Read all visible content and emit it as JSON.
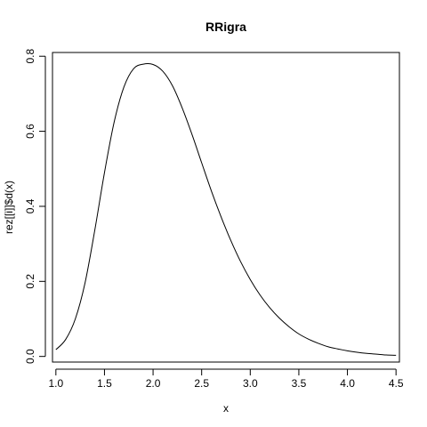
{
  "chart_data": {
    "type": "line",
    "title": "RRigra",
    "xlabel": "x",
    "ylabel": "rez[[i]]$d(x)",
    "xlim": [
      0.965,
      4.535
    ],
    "ylim": [
      -0.015,
      0.81
    ],
    "xticks": [
      1.0,
      1.5,
      2.0,
      2.5,
      3.0,
      3.5,
      4.0,
      4.5
    ],
    "xtick_labels": [
      "1.0",
      "1.5",
      "2.0",
      "2.5",
      "3.0",
      "3.5",
      "4.0",
      "4.5"
    ],
    "yticks": [
      0.0,
      0.2,
      0.4,
      0.6,
      0.8
    ],
    "ytick_labels": [
      "0.0",
      "0.2",
      "0.4",
      "0.6",
      "0.8"
    ],
    "grid": false,
    "legend": "none",
    "line_color": "#000000",
    "series": [
      {
        "x": [
          1.0,
          1.1,
          1.2,
          1.3,
          1.4,
          1.5,
          1.6,
          1.7,
          1.8,
          1.9,
          2.0,
          2.1,
          2.2,
          2.3,
          2.4,
          2.5,
          2.6,
          2.7,
          2.8,
          2.9,
          3.0,
          3.1,
          3.2,
          3.3,
          3.4,
          3.5,
          3.6,
          3.7,
          3.8,
          3.9,
          4.0,
          4.1,
          4.2,
          4.3,
          4.4,
          4.5
        ],
        "y": [
          0.018,
          0.045,
          0.1,
          0.196,
          0.336,
          0.49,
          0.625,
          0.718,
          0.767,
          0.779,
          0.778,
          0.76,
          0.721,
          0.662,
          0.592,
          0.516,
          0.441,
          0.372,
          0.309,
          0.253,
          0.205,
          0.164,
          0.13,
          0.102,
          0.079,
          0.06,
          0.046,
          0.035,
          0.026,
          0.02,
          0.015,
          0.011,
          0.008,
          0.006,
          0.004,
          0.003
        ]
      }
    ]
  }
}
